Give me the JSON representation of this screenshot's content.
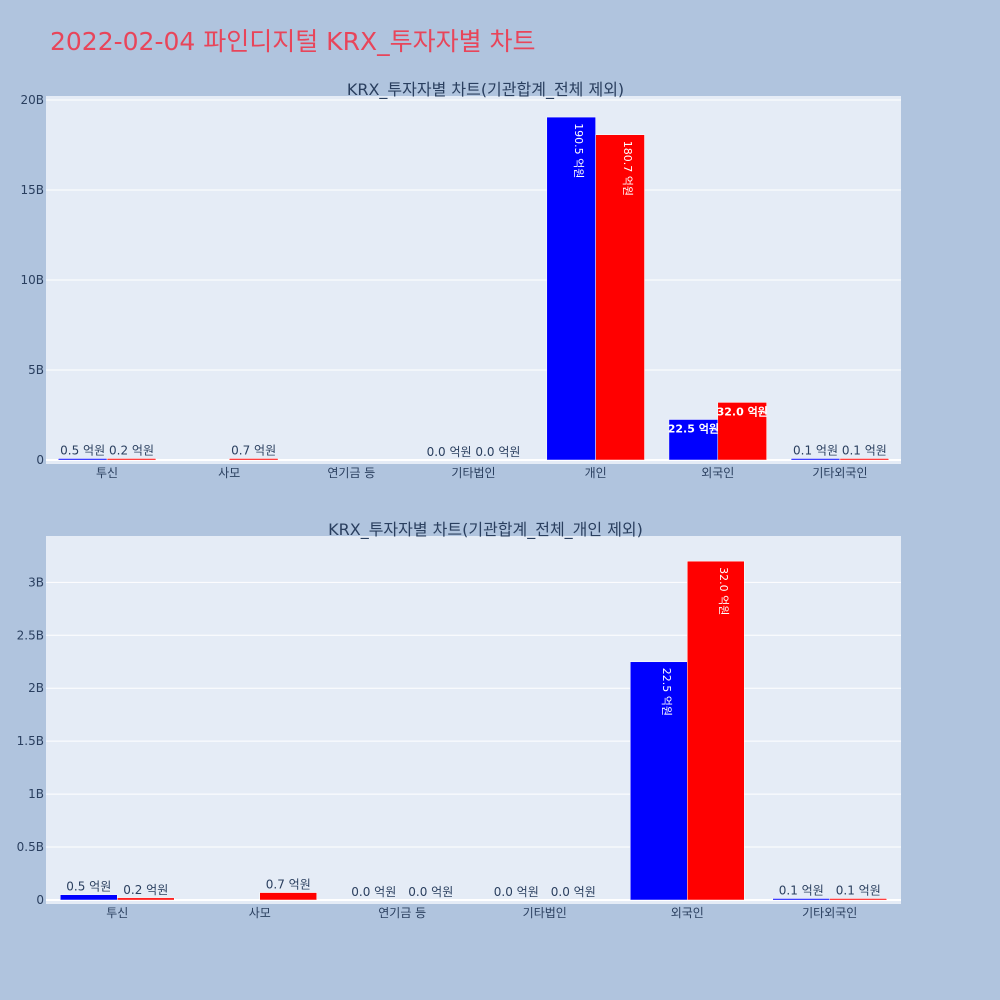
{
  "page_title": "2022-02-04 파인디지털 KRX_투자자별 차트",
  "colors": {
    "buy": "#0000ff",
    "sell": "#ff0000",
    "plot_bg": "#e5ecf6",
    "page_bg": "#b0c4de",
    "title": "#e8455a"
  },
  "chart_data": [
    {
      "type": "bar",
      "title": "KRX_투자자별 차트(기관합계_전체 제외)",
      "categories": [
        "투신",
        "사모",
        "연기금 등",
        "기타법인",
        "개인",
        "외국인",
        "기타외국인"
      ],
      "series": [
        {
          "values": [
            50000000,
            0,
            0,
            0,
            19050000000,
            2250000000,
            10000000
          ],
          "labels": [
            "0.5 억원",
            "",
            "",
            "0.0 억원",
            "190.5 억원",
            "22.5 억원",
            "0.1 억원"
          ]
        },
        {
          "values": [
            20000000,
            70000000,
            0,
            0,
            18070000000,
            3200000000,
            10000000
          ],
          "labels": [
            "0.2 억원",
            "0.7 억원",
            "",
            "0.0 억원",
            "180.7 억원",
            "32.0 억원",
            "0.1 억원"
          ]
        }
      ],
      "ylim": [
        0,
        20000000000
      ],
      "yticks": [
        {
          "v": 0,
          "label": "0"
        },
        {
          "v": 5000000000,
          "label": "5B"
        },
        {
          "v": 10000000000,
          "label": "10B"
        },
        {
          "v": 15000000000,
          "label": "15B"
        },
        {
          "v": 20000000000,
          "label": "20B"
        }
      ],
      "grid": true
    },
    {
      "type": "bar",
      "title": "KRX_투자자별 차트(기관합계_전체_개인 제외)",
      "categories": [
        "투신",
        "사모",
        "연기금 등",
        "기타법인",
        "외국인",
        "기타외국인"
      ],
      "series": [
        {
          "values": [
            50000000,
            0,
            0,
            0,
            2250000000,
            10000000
          ],
          "labels": [
            "0.5 억원",
            "",
            "0.0 억원",
            "0.0 억원",
            "22.5 억원",
            "0.1 억원"
          ]
        },
        {
          "values": [
            20000000,
            70000000,
            0,
            0,
            3200000000,
            10000000
          ],
          "labels": [
            "0.2 억원",
            "0.7 억원",
            "0.0 억원",
            "0.0 억원",
            "32.0 억원",
            "0.1 억원"
          ]
        }
      ],
      "ylim": [
        0,
        3400000000
      ],
      "yticks": [
        {
          "v": 0,
          "label": "0"
        },
        {
          "v": 500000000,
          "label": "0.5B"
        },
        {
          "v": 1000000000,
          "label": "1B"
        },
        {
          "v": 1500000000,
          "label": "1.5B"
        },
        {
          "v": 2000000000,
          "label": "2B"
        },
        {
          "v": 2500000000,
          "label": "2.5B"
        },
        {
          "v": 3000000000,
          "label": "3B"
        }
      ],
      "grid": true
    }
  ]
}
